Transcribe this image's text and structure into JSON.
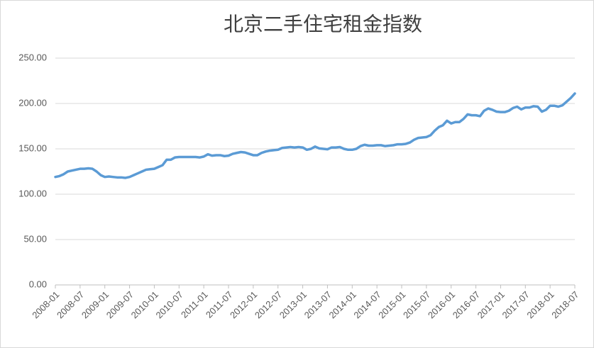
{
  "chart_data": {
    "type": "line",
    "title": "北京二手住宅租金指数",
    "categories": [
      "2008-01",
      null,
      null,
      null,
      null,
      null,
      "2008-07",
      null,
      null,
      null,
      null,
      null,
      "2009-01",
      null,
      null,
      null,
      null,
      null,
      "2009-07",
      null,
      null,
      null,
      null,
      null,
      "2010-01",
      null,
      null,
      null,
      null,
      null,
      "2010-07",
      null,
      null,
      null,
      null,
      null,
      "2011-01",
      null,
      null,
      null,
      null,
      null,
      "2011-07",
      null,
      null,
      null,
      null,
      null,
      "2012-01",
      null,
      null,
      null,
      null,
      null,
      "2012-07",
      null,
      null,
      null,
      null,
      null,
      "2013-01",
      null,
      null,
      null,
      null,
      null,
      "2013-07",
      null,
      null,
      null,
      null,
      null,
      "2014-01",
      null,
      null,
      null,
      null,
      null,
      "2014-07",
      null,
      null,
      null,
      null,
      null,
      "2015-01",
      null,
      null,
      null,
      null,
      null,
      "2015-07",
      null,
      null,
      null,
      null,
      null,
      "2016-01",
      null,
      null,
      null,
      null,
      null,
      "2016-07",
      null,
      null,
      null,
      null,
      null,
      "2017-01",
      null,
      null,
      null,
      null,
      null,
      "2017-07",
      null,
      null,
      null,
      null,
      null,
      "2018-01",
      null,
      null,
      null,
      null,
      null,
      "2018-07"
    ],
    "series": [
      {
        "color": "#5b9bd5",
        "values": [
          119,
          120,
          122,
          125,
          126,
          127,
          128,
          128,
          128.5,
          128,
          125,
          121,
          119,
          119.5,
          119,
          118.5,
          118.5,
          118,
          119,
          121,
          123,
          125,
          127,
          127.5,
          128,
          130,
          132,
          138,
          138,
          140.5,
          141,
          141,
          141,
          141,
          141,
          140.5,
          141.5,
          144,
          142.5,
          143,
          143,
          142,
          142.5,
          144.5,
          145.5,
          146.5,
          146,
          144.5,
          143,
          143,
          145.5,
          147,
          148,
          148.5,
          149,
          151,
          151.5,
          152,
          151.5,
          152,
          151.5,
          149,
          150,
          152.5,
          150.5,
          150,
          149.5,
          151.5,
          151.5,
          152,
          150,
          149,
          149,
          150,
          153,
          154.5,
          153.5,
          153.5,
          154,
          154,
          153,
          153.5,
          154,
          155,
          155,
          155.5,
          157,
          160,
          162,
          162.5,
          163,
          165,
          170,
          174,
          176,
          181,
          178,
          179.5,
          179.5,
          183,
          188,
          187,
          187,
          186,
          192,
          194.5,
          193,
          191,
          190.5,
          190.5,
          192,
          195,
          196.5,
          193.5,
          195.5,
          195.5,
          197,
          196.5,
          191,
          193,
          197.5,
          197.5,
          196.5,
          198,
          202,
          206,
          211
        ]
      }
    ],
    "ylim": [
      0,
      250
    ],
    "yticks": [
      {
        "value": 0,
        "label": "0.00"
      },
      {
        "value": 50,
        "label": "50.00"
      },
      {
        "value": 100,
        "label": "100.00"
      },
      {
        "value": 150,
        "label": "150.00"
      },
      {
        "value": 200,
        "label": "200.00"
      },
      {
        "value": 250,
        "label": "250.00"
      }
    ],
    "grid": true
  }
}
